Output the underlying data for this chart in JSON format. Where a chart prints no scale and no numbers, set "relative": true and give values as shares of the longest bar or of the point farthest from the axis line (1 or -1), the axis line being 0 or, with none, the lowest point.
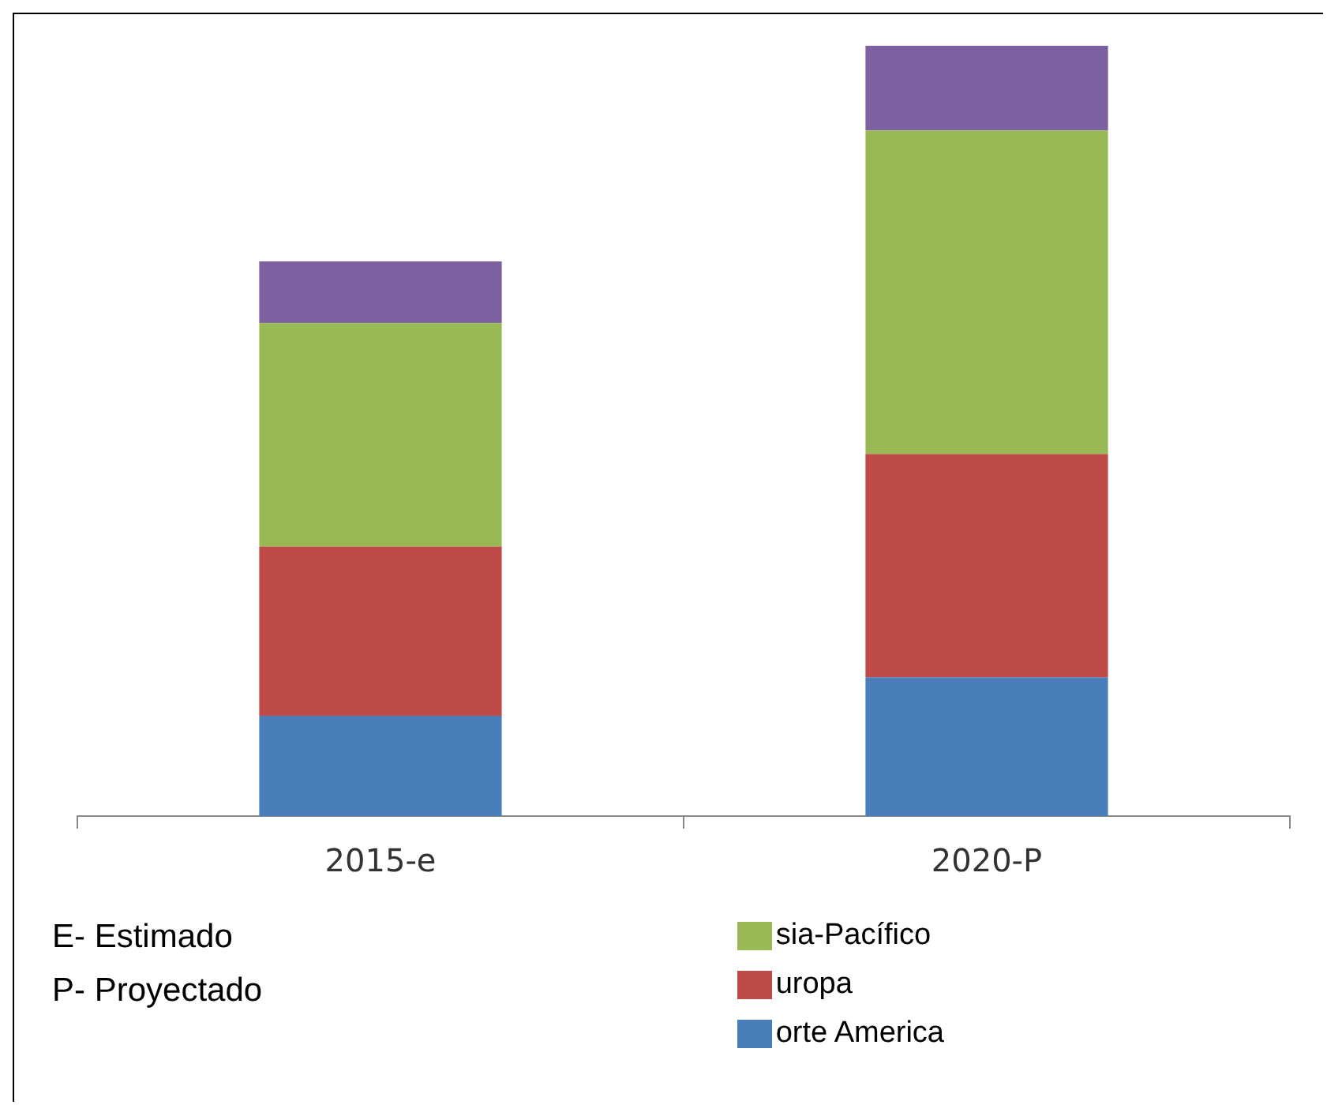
{
  "chart_data": {
    "type": "bar",
    "stacked": true,
    "relative": true,
    "categories": [
      "2015-e",
      "2020-P"
    ],
    "series": [
      {
        "name": "orte America",
        "color": "#4a7ebb",
        "values": [
          0.13,
          0.18
        ]
      },
      {
        "name": "uropa",
        "color": "#be4b48",
        "values": [
          0.22,
          0.29
        ]
      },
      {
        "name": "sia-Pacífico",
        "color": "#98b954",
        "values": [
          0.29,
          0.42
        ]
      },
      {
        "color": "#7d60a0",
        "values": [
          0.08,
          0.11
        ]
      }
    ],
    "annotations": [
      "E- Estimado",
      "P- Proyectado"
    ],
    "legend": "bottom right",
    "grid": false
  }
}
